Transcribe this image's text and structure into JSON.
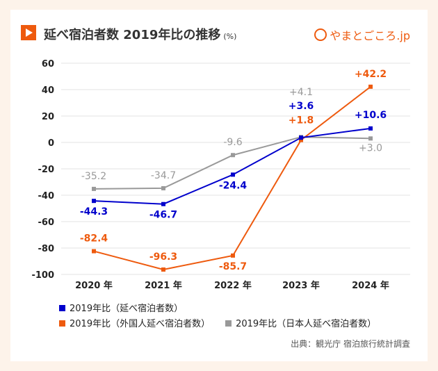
{
  "header": {
    "title": "延べ宿泊者数 2019年比の推移",
    "unit": "(%)",
    "logo": "やまとごころ.jp"
  },
  "chart_data": {
    "type": "line",
    "title": "延べ宿泊者数 2019年比の推移",
    "categories": [
      "2020 年",
      "2021 年",
      "2022 年",
      "2023 年",
      "2024 年"
    ],
    "ylim": [
      -100,
      60
    ],
    "yticks": [
      60,
      40,
      20,
      0,
      -20,
      -40,
      -60,
      -80,
      -100
    ],
    "grid": true,
    "legend_position": "bottom",
    "series": [
      {
        "name": "2019年比（延べ宿泊者数）",
        "color": "#0000cc",
        "values": [
          -44.3,
          -46.7,
          -24.4,
          3.6,
          10.6
        ],
        "labels": [
          "-44.3",
          "-46.7",
          "-24.4",
          "+3.6",
          "+10.6"
        ]
      },
      {
        "name": "2019年比（外国人延べ宿泊者数）",
        "color": "#ee5a0e",
        "values": [
          -82.4,
          -96.3,
          -85.7,
          1.8,
          42.2
        ],
        "labels": [
          "-82.4",
          "-96.3",
          "-85.7",
          "+1.8",
          "+42.2"
        ]
      },
      {
        "name": "2019年比（日本人延べ宿泊者数）",
        "color": "#999999",
        "values": [
          -35.2,
          -34.7,
          -9.6,
          4.1,
          3.0
        ],
        "labels": [
          "-35.2",
          "-34.7",
          "-9.6",
          "+4.1",
          "+3.0"
        ]
      }
    ]
  },
  "source": "出典：観光庁 宿泊旅行統計調査"
}
